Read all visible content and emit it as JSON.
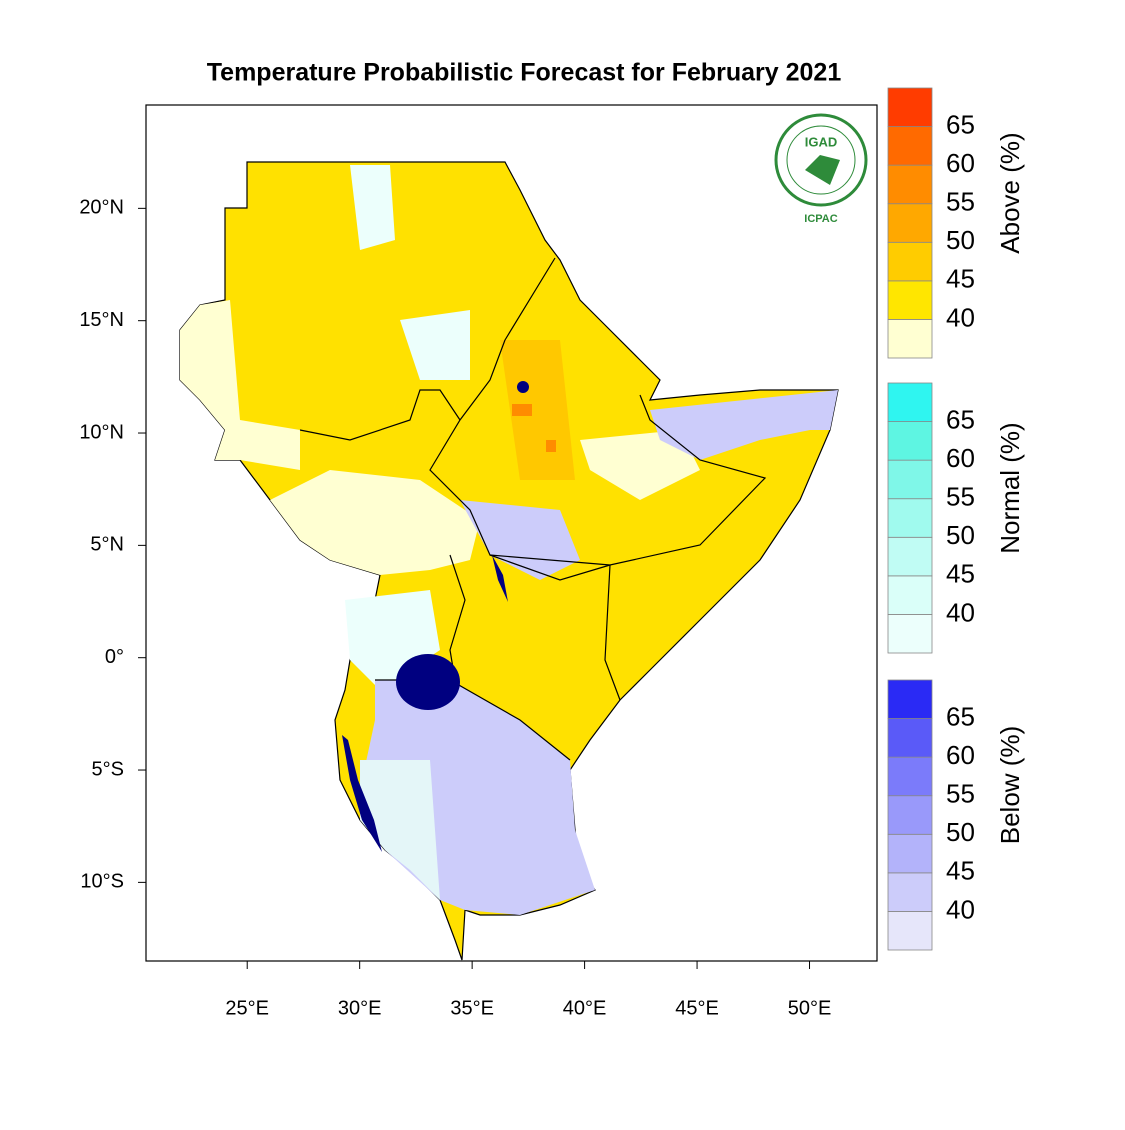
{
  "map": {
    "title": "Temperature Probabilistic Forecast for February 2021",
    "xlim": [
      20.5,
      53.0
    ],
    "ylim": [
      -13.5,
      24.6
    ],
    "xticks": [
      {
        "value": 25,
        "label": "25°E"
      },
      {
        "value": 30,
        "label": "30°E"
      },
      {
        "value": 35,
        "label": "35°E"
      },
      {
        "value": 40,
        "label": "40°E"
      },
      {
        "value": 45,
        "label": "45°E"
      },
      {
        "value": 50,
        "label": "50°E"
      }
    ],
    "yticks": [
      {
        "value": 20,
        "label": "20°N"
      },
      {
        "value": 15,
        "label": "15°N"
      },
      {
        "value": 10,
        "label": "10°N"
      },
      {
        "value": 5,
        "label": "5°N"
      },
      {
        "value": 0,
        "label": "0°"
      },
      {
        "value": -5,
        "label": "5°S"
      },
      {
        "value": -10,
        "label": "10°S"
      }
    ],
    "logo": {
      "name": "IGAD",
      "org": "ICPAC"
    },
    "legends": [
      {
        "label": "Above (%)",
        "levels": [
          40,
          45,
          50,
          55,
          60,
          65
        ],
        "colors": [
          "#ffffd2",
          "#ffe600",
          "#ffcc00",
          "#ffa800",
          "#ff8c00",
          "#ff6a00",
          "#ff3c00"
        ]
      },
      {
        "label": "Normal (%)",
        "levels": [
          40,
          45,
          50,
          55,
          60,
          65
        ],
        "colors": [
          "#ecfffc",
          "#dafff9",
          "#c0fcf4",
          "#a0faee",
          "#7ff7e8",
          "#5ef5e2",
          "#2ff5f0"
        ]
      },
      {
        "label": "Below (%)",
        "levels": [
          40,
          45,
          50,
          55,
          60,
          65
        ],
        "colors": [
          "#e6e6fa",
          "#ccccfa",
          "#b3b3fa",
          "#9999fa",
          "#7b7bfa",
          "#5a5af8",
          "#2a2af5"
        ]
      }
    ]
  }
}
